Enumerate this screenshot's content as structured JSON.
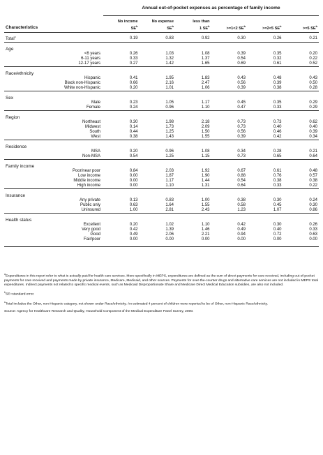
{
  "table": {
    "spanner": "Annual out-of-pocket expenses as percentage of family income",
    "char_header": "Characteristics",
    "columns": [
      {
        "line1": "No income",
        "line2": "SE",
        "mark": "b"
      },
      {
        "line1": "No expense",
        "line2": "SE",
        "mark": "b"
      },
      {
        "line1": "less than",
        "line2": "1 SE",
        "mark": "b"
      },
      {
        "line1": "",
        "line2": ">=1<2 SE",
        "mark": "b"
      },
      {
        "line1": "",
        "line2": ">=2<5 SE",
        "mark": "b"
      },
      {
        "line1": "",
        "line2": ">=5 SE",
        "mark": "b"
      }
    ],
    "total": {
      "label": "Total",
      "mark": "c",
      "values": [
        "0.19",
        "0.83",
        "0.92",
        "0.30",
        "0.26",
        "0.21"
      ]
    },
    "sections": [
      {
        "title": "Age",
        "rows": [
          {
            "label": "<6 years",
            "values": [
              "0.26",
              "1.03",
              "1.08",
              "0.39",
              "0.35",
              "0.20"
            ]
          },
          {
            "label": "6-11 years",
            "values": [
              "0.33",
              "1.32",
              "1.37",
              "0.54",
              "0.32",
              "0.22"
            ]
          },
          {
            "label": "12-17 years",
            "values": [
              "0.27",
              "1.42",
              "1.65",
              "0.69",
              "0.61",
              "0.52"
            ]
          }
        ]
      },
      {
        "title": "Race/ethnicity",
        "rows": [
          {
            "label": "Hispanic",
            "values": [
              "0.41",
              "1.95",
              "1.83",
              "0.43",
              "0.48",
              "0.43"
            ]
          },
          {
            "label": "Black non-Hispanic",
            "values": [
              "0.66",
              "2.16",
              "2.47",
              "0.56",
              "0.39",
              "0.50"
            ]
          },
          {
            "label": "White non-Hispanic",
            "values": [
              "0.20",
              "1.01",
              "1.06",
              "0.39",
              "0.38",
              "0.28"
            ]
          }
        ]
      },
      {
        "title": "Sex",
        "rows": [
          {
            "label": "Male",
            "values": [
              "0.23",
              "1.05",
              "1.17",
              "0.45",
              "0.35",
              "0.29"
            ]
          },
          {
            "label": "Female",
            "values": [
              "0.24",
              "0.96",
              "1.10",
              "0.47",
              "0.33",
              "0.29"
            ]
          }
        ]
      },
      {
        "title": "Region",
        "rows": [
          {
            "label": "Northeast",
            "values": [
              "0.30",
              "1.98",
              "2.18",
              "0.73",
              "0.73",
              "0.62"
            ]
          },
          {
            "label": "Midwest",
            "values": [
              "0.14",
              "1.73",
              "2.09",
              "0.73",
              "0.40",
              "0.40"
            ]
          },
          {
            "label": "South",
            "values": [
              "0.44",
              "1.25",
              "1.50",
              "0.56",
              "0.46",
              "0.39"
            ]
          },
          {
            "label": "West",
            "values": [
              "0.38",
              "1.43",
              "1.55",
              "0.39",
              "0.42",
              "0.34"
            ]
          }
        ]
      },
      {
        "title": "Residence",
        "rows": [
          {
            "label": "MSA",
            "values": [
              "0.20",
              "0.96",
              "1.08",
              "0.34",
              "0.28",
              "0.21"
            ]
          },
          {
            "label": "Non-MSA",
            "values": [
              "0.54",
              "1.25",
              "1.15",
              "0.73",
              "0.65",
              "0.64"
            ]
          }
        ]
      },
      {
        "title": "Family income",
        "rows": [
          {
            "label": "Poor/near poor",
            "values": [
              "0.84",
              "2.03",
              "1.92",
              "0.67",
              "0.61",
              "0.48"
            ]
          },
          {
            "label": "Low income",
            "values": [
              "0.00",
              "1.87",
              "1.90",
              "0.88",
              "0.76",
              "0.57"
            ]
          },
          {
            "label": "Middle income",
            "values": [
              "0.00",
              "1.17",
              "1.44",
              "0.54",
              "0.38",
              "0.38"
            ]
          },
          {
            "label": "High income",
            "values": [
              "0.00",
              "1.10",
              "1.31",
              "0.64",
              "0.33",
              "0.22"
            ]
          }
        ]
      },
      {
        "title": "Insurance",
        "rows": [
          {
            "label": "Any private",
            "values": [
              "0.13",
              "0.83",
              "1.00",
              "0.38",
              "0.30",
              "0.24"
            ]
          },
          {
            "label": "Public only",
            "values": [
              "0.63",
              "1.64",
              "1.55",
              "0.58",
              "0.45",
              "0.30"
            ]
          },
          {
            "label": "Uninsured",
            "values": [
              "1.00",
              "2.81",
              "2.43",
              "1.23",
              "1.07",
              "0.86"
            ]
          }
        ]
      },
      {
        "title": "Health status",
        "rows": [
          {
            "label": "Excellent",
            "values": [
              "0.20",
              "1.02",
              "1.10",
              "0.42",
              "0.30",
              "0.26"
            ]
          },
          {
            "label": "Very good",
            "values": [
              "0.42",
              "1.39",
              "1.46",
              "0.49",
              "0.40",
              "0.33"
            ]
          },
          {
            "label": "Good",
            "values": [
              "0.49",
              "2.06",
              "2.21",
              "0.94",
              "0.72",
              "0.63"
            ]
          },
          {
            "label": "Fair/poor",
            "values": [
              "0.00",
              "0.00",
              "0.00",
              "0.00",
              "0.00",
              "0.00"
            ]
          }
        ]
      }
    ]
  },
  "footnotes": {
    "a_mark": "a",
    "a": "Expenditures in this report refer to what is actually paid for health care services. More specifically in MEPS, expenditures are defined as the sum of direct payments for care received, including out-of-pocket payments for care received and payments made by private insurance, Medicare, Medicaid, and other sources. Payments for over-the-counter drugs and alternative care services are not included in MEPS total expenditures. Indirect payments not related to specific medical events, such as Medicaid Disproportionate Share and Medicare Direct Medical Education subsidies, are also not included.",
    "b_mark": "b",
    "b": "SE=standard error.",
    "c_mark": "c",
    "c": "Total includes the Other, non-Hispanic category, not shown under Race/ethnicity. An estimated 4 percent of children were reported to be of Other, non-Hispanic Race/ethnicity.",
    "source": "Source: Agency for Healthcare Research and Quality, Household Component of the Medical Expenditure Panel Survey, 2000."
  }
}
